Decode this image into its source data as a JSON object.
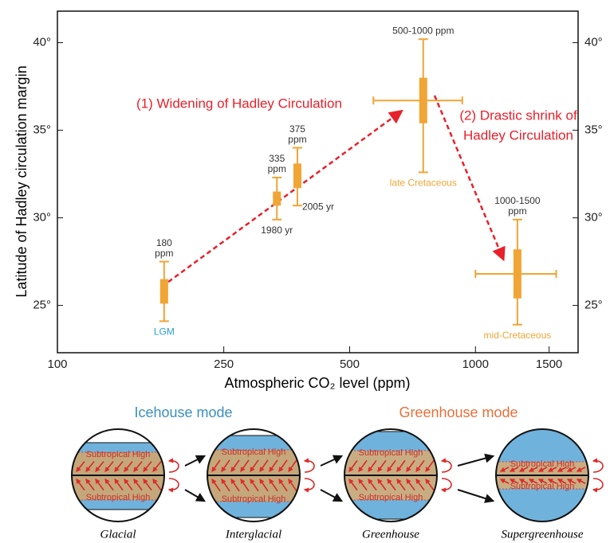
{
  "chart_data": {
    "type": "errorbox",
    "x_label": "Atmospheric CO₂ level (ppm)",
    "y_label": "Latitude of Hadley circulation margin",
    "xlim": [
      100,
      1760
    ],
    "xscale": "log",
    "ylim": [
      22.3,
      41.8
    ],
    "xticks": [
      100,
      250,
      500,
      1000,
      1500
    ],
    "yticks": [
      {
        "value": 25,
        "label": "25°"
      },
      {
        "value": 30,
        "label": "30°"
      },
      {
        "value": 35,
        "label": "35°"
      },
      {
        "value": 40,
        "label": "40°"
      }
    ],
    "color": "#f0a535",
    "points": [
      {
        "x": 180,
        "box": [
          25.1,
          26.5
        ],
        "whisker": [
          24.1,
          27.5
        ],
        "label": [
          "180",
          "ppm"
        ],
        "name": "LGM",
        "name_color": "#2aa0d8"
      },
      {
        "x": 335,
        "box": [
          30.7,
          31.5
        ],
        "whisker": [
          29.9,
          32.3
        ],
        "label": [
          "335",
          "ppm"
        ],
        "name": "1980 yr",
        "name_color": "#333333"
      },
      {
        "x": 375,
        "box": [
          31.7,
          33.1
        ],
        "whisker": [
          30.7,
          34.0
        ],
        "label": [
          "375",
          "ppm"
        ],
        "name": "2005 yr",
        "name_color": "#333333"
      },
      {
        "x": 750,
        "box": [
          35.4,
          38.0
        ],
        "whisker": [
          32.6,
          40.2
        ],
        "xrange": [
          570,
          930
        ],
        "label": [
          "500-1000 ppm"
        ],
        "name": "late Cretaceous",
        "name_color": "#f0a535"
      },
      {
        "x": 1260,
        "box": [
          25.4,
          28.2
        ],
        "whisker": [
          23.9,
          29.9
        ],
        "xrange": [
          1000,
          1560
        ],
        "label": [
          "1000-1500",
          "ppm"
        ],
        "name": "mid-Cretaceous",
        "name_color": "#f0a535"
      }
    ],
    "annotations": [
      {
        "lines": [
          "(1) Widening of Hadley Circulation"
        ],
        "color": "#e8202a"
      },
      {
        "lines": [
          "(2) Drastic shrink of",
          "Hadley Circulation"
        ],
        "color": "#e8202a"
      }
    ]
  },
  "diagram": {
    "modes": [
      {
        "label": "Icehouse mode",
        "color": "#3a8fc0"
      },
      {
        "label": "Greenhouse mode",
        "color": "#e8703a"
      }
    ],
    "globes": [
      {
        "label": "Glacial",
        "highs": [
          "Subtropical High",
          "Subtropical High"
        ]
      },
      {
        "label": "Interglacial",
        "highs": [
          "Subtropical High",
          "Subtropical High"
        ]
      },
      {
        "label": "Greenhouse",
        "highs": [
          "Subtropical High",
          "Subtropical High"
        ]
      },
      {
        "label": "Supergreenhouse",
        "highs": [
          "Subtropical High",
          "Subtropical High"
        ]
      }
    ]
  }
}
